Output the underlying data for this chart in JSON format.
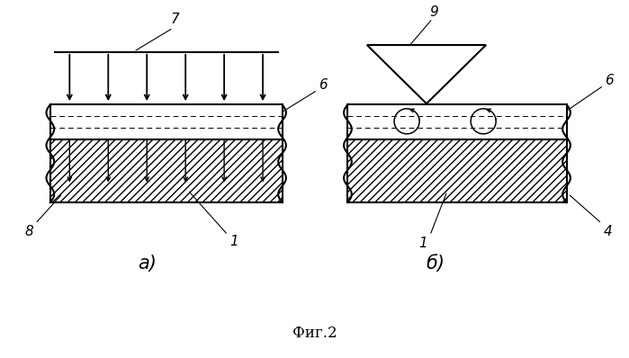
{
  "bg_color": "#ffffff",
  "line_color": "#000000",
  "fig_width": 6.99,
  "fig_height": 3.98,
  "dpi": 100,
  "caption": "Фиг.2",
  "label_a": "а)",
  "label_b": "б)"
}
